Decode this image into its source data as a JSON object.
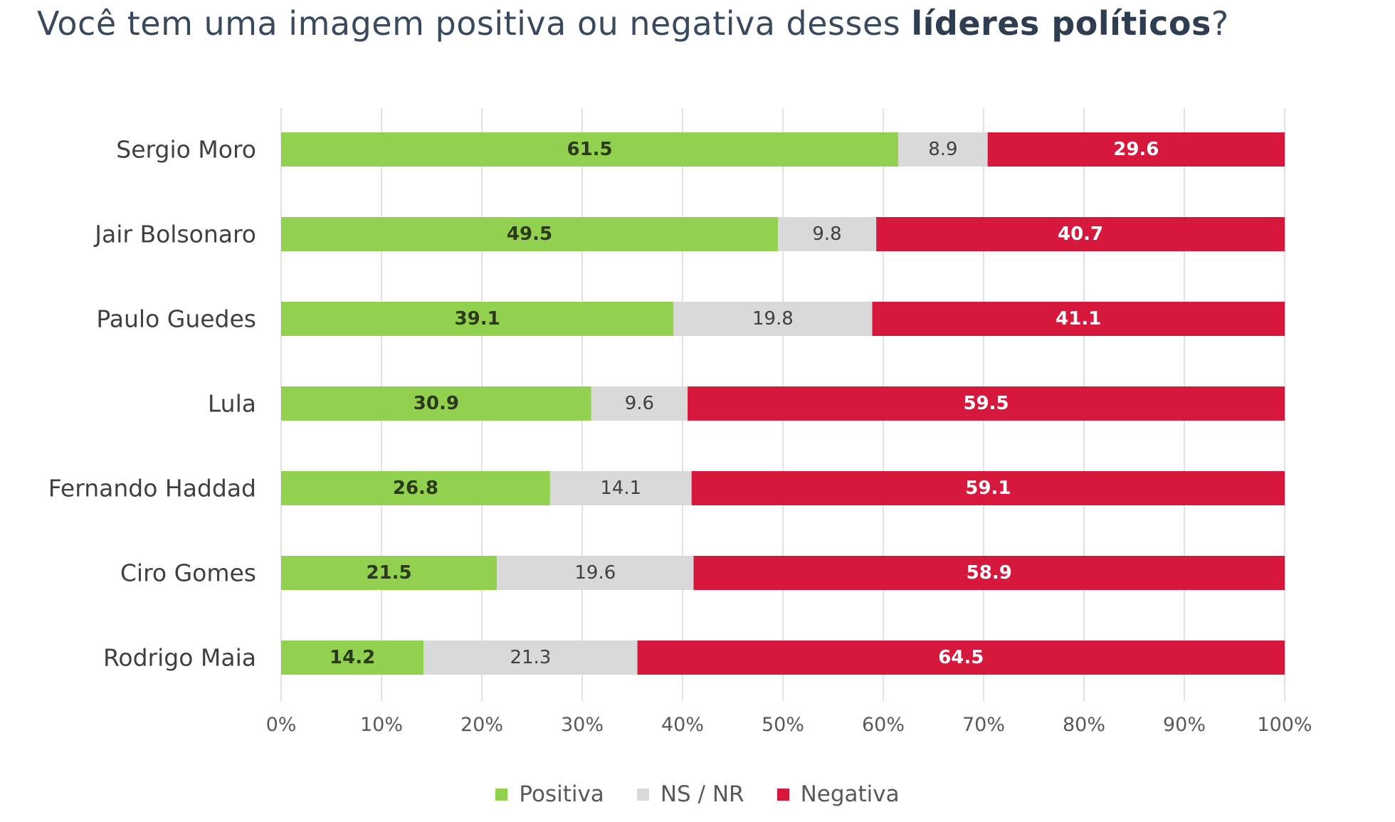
{
  "title": {
    "prefix": "Você tem uma imagem positiva ou negativa desses ",
    "bold": "líderes políticos",
    "suffix": "?"
  },
  "colors": {
    "positiva": "#92d050",
    "ns_nr": "#d9d9d9",
    "negativa": "#d6183d",
    "grid": "#d9d9d9",
    "title": "#3a4a5e"
  },
  "chart_data": {
    "type": "bar",
    "orientation": "horizontal",
    "stacked": "100%",
    "categories": [
      "Sergio Moro",
      "Jair Bolsonaro",
      "Paulo Guedes",
      "Lula",
      "Fernando Haddad",
      "Ciro Gomes",
      "Rodrigo Maia"
    ],
    "series": [
      {
        "name": "Positiva",
        "color": "#92d050",
        "values": [
          61.5,
          49.5,
          39.1,
          30.9,
          26.8,
          21.5,
          14.2
        ]
      },
      {
        "name": "NS / NR",
        "color": "#d9d9d9",
        "values": [
          8.9,
          9.8,
          19.8,
          9.6,
          14.1,
          19.6,
          21.3
        ]
      },
      {
        "name": "Negativa",
        "color": "#d6183d",
        "values": [
          29.6,
          40.7,
          41.1,
          59.5,
          59.1,
          58.9,
          64.5
        ]
      }
    ],
    "xlim": [
      0,
      100
    ],
    "xticks": [
      "0%",
      "10%",
      "20%",
      "30%",
      "40%",
      "50%",
      "60%",
      "70%",
      "80%",
      "90%",
      "100%"
    ],
    "grid": true,
    "legend_position": "bottom"
  }
}
